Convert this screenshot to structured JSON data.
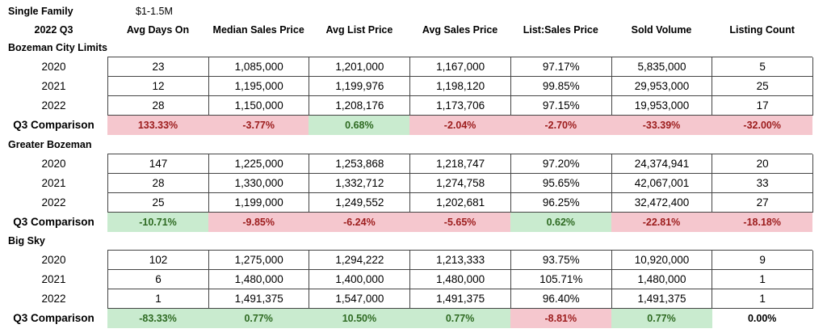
{
  "title": "Single Family",
  "price_range": "$1-1.5M",
  "period": "2022 Q3",
  "columns": [
    "Avg Days On",
    "Median Sales Price",
    "Avg List Price",
    "Avg Sales Price",
    "List:Sales Price",
    "Sold Volume",
    "Listing Count"
  ],
  "colors": {
    "negative_bg": "#f5c7ce",
    "negative_text": "#9c1c1c",
    "positive_bg": "#c9ebcf",
    "positive_text": "#2e6a22"
  },
  "sections": [
    {
      "name": "Bozeman City Limits",
      "rows": [
        {
          "year": "2020",
          "values": [
            "23",
            "1,085,000",
            "1,201,000",
            "1,167,000",
            "97.17%",
            "5,835,000",
            "5"
          ]
        },
        {
          "year": "2021",
          "values": [
            "12",
            "1,195,000",
            "1,199,976",
            "1,198,120",
            "99.85%",
            "29,953,000",
            "25"
          ]
        },
        {
          "year": "2022",
          "values": [
            "28",
            "1,150,000",
            "1,208,176",
            "1,173,706",
            "97.15%",
            "19,953,000",
            "17"
          ]
        }
      ],
      "comparison": {
        "label": "Q3 Comparison",
        "values": [
          "133.33%",
          "-3.77%",
          "0.68%",
          "-2.04%",
          "-2.70%",
          "-33.39%",
          "-32.00%"
        ],
        "status": [
          "neg",
          "neg",
          "pos",
          "neg",
          "neg",
          "neg",
          "neg"
        ]
      }
    },
    {
      "name": "Greater Bozeman",
      "rows": [
        {
          "year": "2020",
          "values": [
            "147",
            "1,225,000",
            "1,253,868",
            "1,218,747",
            "97.20%",
            "24,374,941",
            "20"
          ]
        },
        {
          "year": "2021",
          "values": [
            "28",
            "1,330,000",
            "1,332,712",
            "1,274,758",
            "95.65%",
            "42,067,001",
            "33"
          ]
        },
        {
          "year": "2022",
          "values": [
            "25",
            "1,199,000",
            "1,249,552",
            "1,202,681",
            "96.25%",
            "32,472,400",
            "27"
          ]
        }
      ],
      "comparison": {
        "label": "Q3 Comparison",
        "values": [
          "-10.71%",
          "-9.85%",
          "-6.24%",
          "-5.65%",
          "0.62%",
          "-22.81%",
          "-18.18%"
        ],
        "status": [
          "pos",
          "neg",
          "neg",
          "neg",
          "pos",
          "neg",
          "neg"
        ]
      }
    },
    {
      "name": "Big Sky",
      "rows": [
        {
          "year": "2020",
          "values": [
            "102",
            "1,275,000",
            "1,294,222",
            "1,213,333",
            "93.75%",
            "10,920,000",
            "9"
          ]
        },
        {
          "year": "2021",
          "values": [
            "6",
            "1,480,000",
            "1,400,000",
            "1,480,000",
            "105.71%",
            "1,480,000",
            "1"
          ]
        },
        {
          "year": "2022",
          "values": [
            "1",
            "1,491,375",
            "1,547,000",
            "1,491,375",
            "96.40%",
            "1,491,375",
            "1"
          ]
        }
      ],
      "comparison": {
        "label": "Q3 Comparison",
        "values": [
          "-83.33%",
          "0.77%",
          "10.50%",
          "0.77%",
          "-8.81%",
          "0.77%",
          "0.00%"
        ],
        "status": [
          "pos",
          "pos",
          "pos",
          "pos",
          "neg",
          "pos",
          "neu"
        ]
      }
    }
  ]
}
